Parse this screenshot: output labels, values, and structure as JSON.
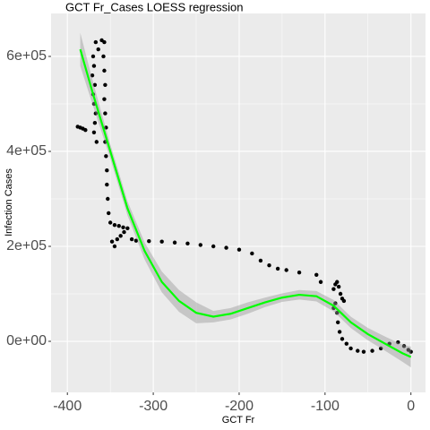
{
  "chart_data": {
    "type": "scatter",
    "title": "GCT Fr_Cases LOESS regression",
    "x_label": "GCT Fr",
    "y_label": "Infection Cases",
    "xlim": [
      -419,
      17
    ],
    "ylim": [
      -107500,
      690500
    ],
    "xticks": [
      -400,
      -300,
      -200,
      -100,
      0
    ],
    "xminor": [
      -350,
      -250,
      -150,
      -50
    ],
    "yticks": [
      {
        "value": 0,
        "label": "0e+00"
      },
      {
        "value": 200000,
        "label": "2e+05"
      },
      {
        "value": 400000,
        "label": "4e+05"
      },
      {
        "value": 600000,
        "label": "6e+05"
      }
    ],
    "yminor": [
      100000,
      300000,
      500000
    ],
    "grid": true,
    "points": {
      "color": "#000000",
      "x": [
        -388,
        -385,
        -382,
        -379,
        -370,
        -369,
        -371,
        -368,
        -370,
        -369,
        -367,
        -368,
        -369,
        -366,
        -367,
        -364,
        -360,
        -357,
        -358,
        -357,
        -356,
        -357,
        -356,
        -355,
        -356,
        -355,
        -354,
        -354,
        -353,
        -352,
        -350,
        -345,
        -340,
        -335,
        -348,
        -345,
        -342,
        -338,
        -334,
        -330,
        -325,
        -320,
        -305,
        -290,
        -275,
        -260,
        -245,
        -230,
        -215,
        -200,
        -185,
        -175,
        -165,
        -155,
        -145,
        -130,
        -110,
        -105,
        -90,
        -88,
        -86,
        -84,
        -82,
        -80,
        -78,
        -88,
        -90,
        -86,
        -85,
        -83,
        -80,
        -75,
        -70,
        -62,
        -55,
        -45,
        -35,
        -25,
        -15,
        -8,
        -3,
        0
      ],
      "y": [
        452000,
        450000,
        448000,
        445000,
        600000,
        580000,
        560000,
        540000,
        520000,
        500000,
        480000,
        460000,
        440000,
        420000,
        630000,
        615000,
        634000,
        630000,
        600000,
        570000,
        540000,
        510000,
        480000,
        450000,
        420000,
        390000,
        360000,
        330000,
        300000,
        270000,
        250000,
        245000,
        243000,
        240000,
        210000,
        200000,
        215000,
        222000,
        230000,
        238000,
        215000,
        212000,
        211000,
        210000,
        208000,
        206000,
        203000,
        200000,
        197000,
        193000,
        185000,
        170000,
        160000,
        153000,
        150000,
        145000,
        140000,
        125000,
        110000,
        120000,
        125000,
        115000,
        100000,
        90000,
        85000,
        80000,
        70000,
        60000,
        40000,
        20000,
        5000,
        -5000,
        -15000,
        -20000,
        -22000,
        -20000,
        -15000,
        -5000,
        -2000,
        -10000,
        -18000,
        -22000
      ]
    },
    "fit": {
      "color": "#00ff00",
      "band_color": "#999999",
      "x": [
        -385,
        -370,
        -350,
        -330,
        -310,
        -290,
        -270,
        -250,
        -230,
        -210,
        -190,
        -170,
        -150,
        -130,
        -110,
        -90,
        -70,
        -50,
        -30,
        -10,
        0
      ],
      "y": [
        615000,
        520000,
        400000,
        280000,
        190000,
        125000,
        85000,
        60000,
        52000,
        58000,
        70000,
        82000,
        92000,
        98000,
        95000,
        75000,
        40000,
        15000,
        -5000,
        -25000,
        -33000
      ],
      "lower": [
        580000,
        495000,
        385000,
        265000,
        172000,
        103000,
        62000,
        38000,
        40000,
        46000,
        58000,
        72000,
        83000,
        88000,
        84000,
        63000,
        28000,
        2000,
        -20000,
        -43000,
        -55000
      ],
      "upper": [
        650000,
        545000,
        415000,
        295000,
        208000,
        147000,
        108000,
        82000,
        64000,
        70000,
        82000,
        92000,
        101000,
        108000,
        106000,
        87000,
        52000,
        28000,
        10000,
        -7000,
        -11000
      ]
    }
  }
}
